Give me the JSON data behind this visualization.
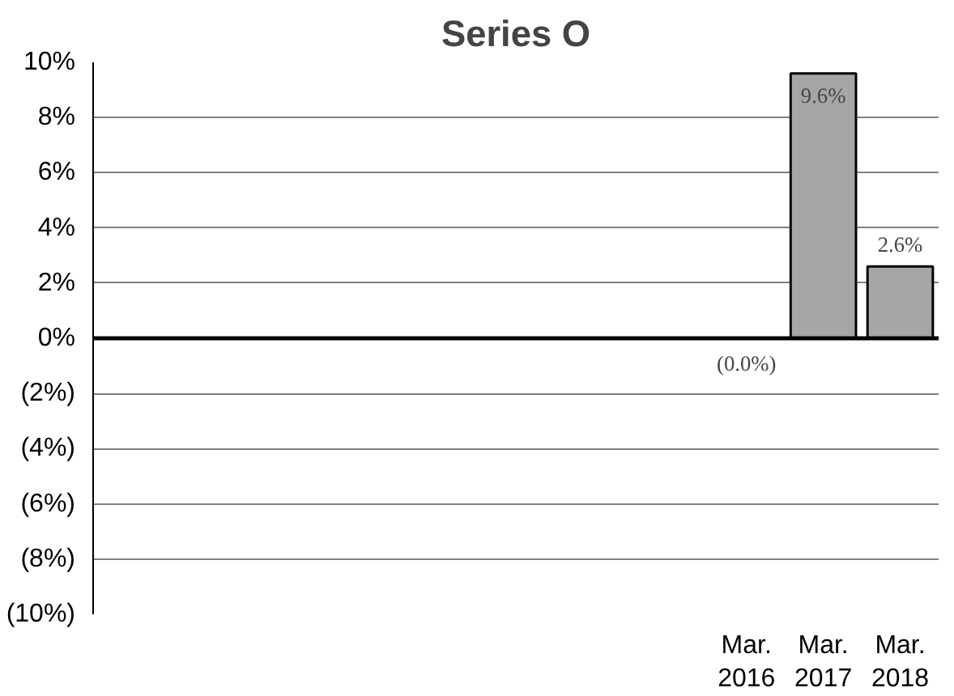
{
  "chart_data": {
    "type": "bar",
    "title": "Series O",
    "categories": [
      null,
      null,
      null,
      null,
      null,
      null,
      null,
      null,
      "Mar. 2016",
      "Mar. 2017",
      "Mar. 2018"
    ],
    "values": [
      null,
      null,
      null,
      null,
      null,
      null,
      null,
      null,
      0.0,
      9.6,
      2.6
    ],
    "value_labels": [
      null,
      null,
      null,
      null,
      null,
      null,
      null,
      null,
      "(0.0%)",
      "9.6%",
      "2.6%"
    ],
    "color": "#a6a6a6",
    "ylim": [
      -10,
      10
    ],
    "yticks": [
      {
        "value": -10,
        "label": "(10%)"
      },
      {
        "value": -8,
        "label": "(8%)"
      },
      {
        "value": -6,
        "label": "(6%)"
      },
      {
        "value": -4,
        "label": "(4%)"
      },
      {
        "value": -2,
        "label": "(2%)"
      },
      {
        "value": 0,
        "label": "0%"
      },
      {
        "value": 2,
        "label": "2%"
      },
      {
        "value": 4,
        "label": "4%"
      },
      {
        "value": 6,
        "label": "6%"
      },
      {
        "value": 8,
        "label": "8%"
      },
      {
        "value": 10,
        "label": "10%"
      }
    ],
    "ref_lines": [
      {
        "axis": "y",
        "value": 0,
        "color": "#000000"
      }
    ],
    "grid": "y",
    "legend": false
  }
}
